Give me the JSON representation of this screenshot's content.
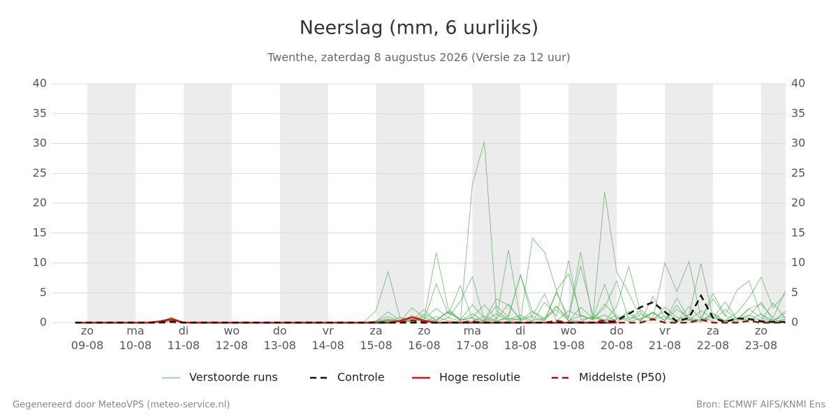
{
  "chart_data": {
    "type": "line",
    "title": "Neerslag (mm, 6 uurlijks)",
    "subtitle": "Twenthe, zaterdag  8 augustus 2026 (Versie za 12 uur)",
    "footer_left": "Gegenereerd door MeteoVPS (meteo-service.nl)",
    "footer_right": "Bron: ECMWF AIFS/KNMI Ens",
    "categories": [
      null,
      "zo 09-08",
      null,
      null,
      null,
      "ma 10-08",
      null,
      null,
      null,
      "di 11-08",
      null,
      null,
      null,
      "wo 12-08",
      null,
      null,
      null,
      "do 13-08",
      null,
      null,
      null,
      "vr 14-08",
      null,
      null,
      null,
      "za 15-08",
      null,
      null,
      null,
      "zo 16-08",
      null,
      null,
      null,
      "ma 17-08",
      null,
      null,
      null,
      "di 18-08",
      null,
      null,
      null,
      "wo 19-08",
      null,
      null,
      null,
      "do 20-08",
      null,
      null,
      null,
      "vr 21-08",
      null,
      null,
      null,
      "za 22-08",
      null,
      null,
      null,
      "zo 23-08",
      null,
      null
    ],
    "ylim": [
      0,
      40
    ],
    "yticks": [
      0,
      5,
      10,
      15,
      20,
      25,
      30,
      35,
      40
    ],
    "y2lim": [
      0,
      40
    ],
    "y2ticks": [
      0,
      5,
      10,
      15,
      20,
      25,
      30,
      35,
      40
    ],
    "grid": true,
    "legend": "bottom",
    "series": [
      {
        "name": "Verstoorde runs",
        "color": "#4caf50",
        "members": [
          [
            0,
            0,
            0,
            0,
            0,
            0,
            0,
            0.3,
            0.5,
            0,
            0,
            0,
            0,
            0,
            0,
            0,
            0,
            0,
            0,
            0,
            0,
            0,
            0,
            0,
            0,
            0,
            0.3,
            0.1,
            0.5,
            0.2,
            1.0,
            0.3,
            0.1,
            23.2,
            30.3,
            2.0,
            0.5,
            1.2,
            0.3,
            0.8,
            2.1,
            0.4,
            0.2,
            1.0,
            0.3,
            0.6,
            1.5,
            0.2,
            0.4,
            1.1,
            0.3,
            0.5,
            0.2,
            1.4,
            0.3,
            0.2,
            0.8,
            0.4,
            0.1,
            0.6
          ],
          [
            0,
            0,
            0,
            0,
            0,
            0,
            0,
            0.2,
            0.8,
            0,
            0,
            0,
            0,
            0,
            0,
            0,
            0,
            0,
            0,
            0,
            0,
            0,
            0,
            0,
            0,
            0.2,
            1.8,
            0.4,
            0.1,
            0.6,
            2.4,
            0.8,
            0.3,
            1.5,
            0.2,
            0.6,
            3.1,
            0.4,
            1.9,
            0.7,
            2.8,
            0.3,
            1.2,
            0.5,
            21.9,
            8.5,
            5.0,
            0.6,
            1.8,
            0.4,
            2.2,
            0.9,
            0.3,
            1.6,
            0.2,
            0.5,
            1.1,
            3.4,
            0.4,
            1.0
          ],
          [
            0,
            0,
            0,
            0,
            0,
            0,
            0,
            0,
            0.4,
            0,
            0,
            0,
            0,
            0,
            0,
            0,
            0,
            0,
            0,
            0,
            0,
            0,
            0,
            0,
            0,
            0.1,
            0.4,
            0.2,
            2.5,
            0.8,
            0.3,
            2.0,
            0.6,
            0.2,
            1.1,
            0.3,
            0.7,
            0.4,
            14.1,
            11.8,
            5.4,
            8.2,
            1.3,
            0.5,
            3.1,
            0.9,
            0.2,
            0.7,
            1.6,
            0.4,
            2.9,
            0.3,
            0.6,
            4.9,
            1.2,
            0.4,
            2.3,
            0.8,
            0.2,
            1.9
          ],
          [
            0,
            0,
            0,
            0,
            0,
            0,
            0,
            0.3,
            0.6,
            0,
            0,
            0,
            0,
            0,
            0,
            0,
            0,
            0,
            0,
            0,
            0,
            0,
            0,
            0,
            0.1,
            2.0,
            8.5,
            0.7,
            0.2,
            1.4,
            0.5,
            1.7,
            0.4,
            0.9,
            3.0,
            0.6,
            12.2,
            0.3,
            1.0,
            0.4,
            2.6,
            0.8,
            11.8,
            0.5,
            1.3,
            0.2,
            0.9,
            0.4,
            1.7,
            0.3,
            4.1,
            0.6,
            0.2,
            1.0,
            0.3,
            0.8,
            0.4,
            1.5,
            0.2,
            0.5
          ],
          [
            0,
            0,
            0,
            0,
            0,
            0,
            0,
            0,
            0.3,
            0,
            0,
            0,
            0,
            0,
            0,
            0,
            0,
            0,
            0,
            0,
            0,
            0,
            0,
            0,
            0,
            0.1,
            0.5,
            0.3,
            0.2,
            1.0,
            11.7,
            2.3,
            0.4,
            0.8,
            0.2,
            1.5,
            0.3,
            0.7,
            0.2,
            3.4,
            1.1,
            10.4,
            0.5,
            0.9,
            0.3,
            1.2,
            0.4,
            2.1,
            0.6,
            10.0,
            5.2,
            10.2,
            0.8,
            0.3,
            2.2,
            0.6,
            1.3,
            0.4,
            3.3,
            0.7
          ],
          [
            0,
            0,
            0,
            0,
            0,
            0,
            0,
            0.2,
            0.7,
            0,
            0,
            0,
            0,
            0,
            0,
            0,
            0,
            0,
            0,
            0,
            0,
            0,
            0,
            0,
            0,
            0.2,
            0.6,
            0.1,
            1.2,
            0.4,
            0.3,
            1.8,
            0.5,
            3.0,
            0.7,
            0.2,
            1.1,
            8.0,
            0.6,
            0.3,
            5.0,
            0.9,
            9.5,
            1.4,
            0.3,
            2.7,
            9.4,
            1.6,
            0.5,
            2.0,
            0.4,
            1.3,
            9.9,
            0.8,
            0.3,
            1.7,
            4.2,
            7.6,
            2.5,
            4.8
          ],
          [
            0,
            0,
            0,
            0,
            0,
            0,
            0,
            0,
            0.5,
            0,
            0,
            0,
            0,
            0,
            0,
            0,
            0,
            0,
            0,
            0,
            0,
            0,
            0,
            0,
            0,
            0.3,
            1.0,
            0.2,
            0.8,
            0.5,
            6.5,
            1.4,
            6.2,
            0.6,
            0.3,
            2.8,
            0.9,
            8.0,
            1.8,
            0.4,
            5.3,
            0.2,
            2.6,
            0.7,
            6.4,
            0.5,
            1.9,
            0.3,
            4.4,
            0.8,
            0.2,
            2.7,
            0.6,
            4.0,
            1.1,
            5.5,
            7.0,
            1.2,
            0.4,
            1.6
          ],
          [
            0,
            0,
            0,
            0,
            0,
            0,
            0,
            0.1,
            0.9,
            0,
            0,
            0,
            0,
            0,
            0,
            0,
            0,
            0,
            0,
            0,
            0,
            0,
            0,
            0,
            0,
            0.1,
            0.3,
            0.9,
            0.4,
            2.2,
            0.2,
            0.8,
            3.6,
            7.7,
            0.4,
            4.0,
            2.9,
            0.6,
            1.2,
            4.8,
            0.3,
            2.0,
            1.1,
            0.6,
            2.5,
            7.0,
            0.5,
            1.4,
            0.3,
            2.6,
            0.9,
            0.4,
            2.0,
            0.7,
            3.5,
            0.6,
            2.4,
            3.1,
            0.8,
            5.3
          ]
        ]
      },
      {
        "name": "Controle",
        "color": "#111111",
        "dash": true,
        "values": [
          0,
          0,
          0,
          0,
          0,
          0,
          0,
          0,
          0.2,
          0,
          0,
          0,
          0,
          0,
          0,
          0,
          0,
          0,
          0,
          0,
          0,
          0,
          0,
          0,
          0,
          0,
          0,
          0,
          0,
          0,
          0,
          0,
          0,
          0,
          0,
          0,
          0,
          0,
          0,
          0,
          0,
          0,
          0,
          0,
          0,
          0.3,
          1.5,
          2.6,
          3.4,
          1.8,
          0.2,
          0.8,
          4.5,
          0.8,
          0.1,
          0.7,
          0.6,
          0.2,
          0.1,
          0.1
        ]
      },
      {
        "name": "Hoge resolutie",
        "color": "#e01010",
        "values": [
          0,
          0,
          0,
          0,
          0,
          0,
          0,
          0.2,
          0.6,
          0,
          0,
          0,
          0,
          0,
          0,
          0,
          0,
          0,
          0,
          0,
          0,
          0,
          0,
          0,
          0,
          0,
          0,
          0.3,
          0.9,
          0.3,
          0,
          0,
          0,
          0,
          0,
          0,
          0,
          0,
          0,
          0,
          0,
          0,
          0,
          0,
          0,
          0,
          null,
          null,
          null,
          null,
          null,
          null,
          null,
          null,
          null,
          null,
          null,
          null,
          null,
          null
        ]
      },
      {
        "name": "Middelste (P50)",
        "color": "#a01010",
        "dash": true,
        "values": [
          0,
          0,
          0,
          0,
          0,
          0,
          0,
          0,
          0.1,
          0,
          0,
          0,
          0,
          0,
          0,
          0,
          0,
          0,
          0,
          0,
          0,
          0,
          0,
          0,
          0,
          0,
          0,
          0,
          0.4,
          0,
          0,
          0,
          0,
          0.2,
          0,
          0,
          0,
          0,
          0,
          0,
          0.3,
          0,
          0,
          0,
          0.4,
          0,
          0,
          0,
          0.6,
          0,
          0,
          0,
          0.5,
          0,
          0,
          0,
          0.3,
          0,
          0,
          0
        ]
      }
    ]
  }
}
